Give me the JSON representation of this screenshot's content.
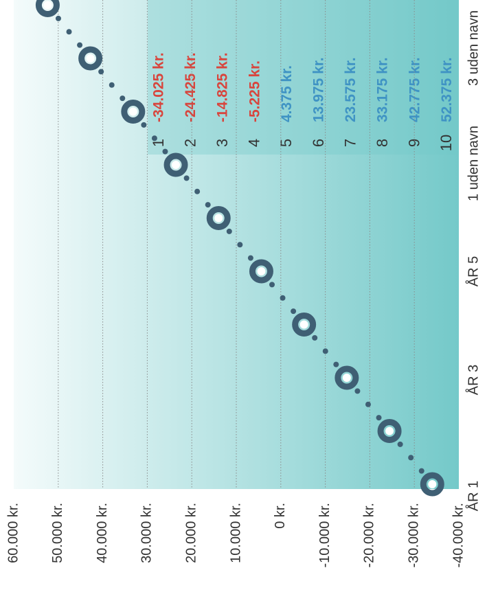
{
  "chart_data": {
    "type": "scatter",
    "title": "",
    "xlabel": "",
    "ylabel": "",
    "ylim": [
      -40000,
      60000
    ],
    "y_ticks": [
      "60.000 kr.",
      "50.000 kr.",
      "40.000 kr.",
      "30.000 kr.",
      "20.000 kr.",
      "10.000 kr.",
      "0 kr.",
      "-10.000 kr.",
      "-20.000 kr.",
      "-30.000 kr.",
      "-40.000 kr."
    ],
    "x_ticks": [
      "ÅR 1",
      "ÅR 3",
      "ÅR 5",
      "1 uden navn",
      "3 uden navn"
    ],
    "series": [
      {
        "x": [
          1,
          2,
          3,
          4,
          5,
          6,
          7,
          8,
          9,
          10
        ],
        "values": [
          -34025,
          -24425,
          -14825,
          -5225,
          4375,
          13975,
          23575,
          33175,
          42775,
          52375
        ],
        "labels": [
          "-34.025 kr.",
          "-24.425 kr.",
          "-14.825 kr.",
          "-5.225 kr.",
          "4.375 kr.",
          "13.975 kr.",
          "23.575 kr.",
          "33.175 kr.",
          "42.775 kr.",
          "52.375 kr."
        ]
      }
    ],
    "table": {
      "rows": [
        {
          "n": "1",
          "value": "-34.025 kr."
        },
        {
          "n": "2",
          "value": "-24.425 kr."
        },
        {
          "n": "3",
          "value": "-14.825 kr."
        },
        {
          "n": "4",
          "value": "-5.225 kr."
        },
        {
          "n": "5",
          "value": "4.375 kr."
        },
        {
          "n": "6",
          "value": "13.975 kr."
        },
        {
          "n": "7",
          "value": "23.575 kr."
        },
        {
          "n": "8",
          "value": "33.175 kr."
        },
        {
          "n": "9",
          "value": "42.775 kr."
        },
        {
          "n": "10",
          "value": "52.375 kr."
        }
      ]
    },
    "colors": {
      "marker": "#3f5f74",
      "negative": "#d8453d",
      "positive": "#3f93c4",
      "grid": "#8a8a8a",
      "text": "#333333",
      "bg_light": "#f4fbfb",
      "bg_dark": "#74c9c9"
    },
    "grid": true,
    "orientation": "rotated-90-clockwise"
  }
}
